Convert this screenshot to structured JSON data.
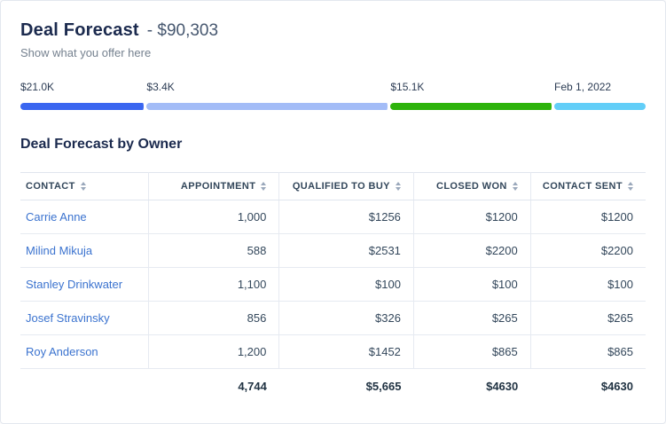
{
  "header": {
    "title": "Deal Forecast",
    "amount": "- $90,303",
    "subtitle": "Show what you offer here"
  },
  "progress": {
    "segments": [
      {
        "label": "$21.0K",
        "color": "#3a66f0",
        "width_pct": 20.2
      },
      {
        "label": "$3.4K",
        "color": "#a3bcf7",
        "width_pct": 39.0
      },
      {
        "label": "$15.1K",
        "color": "#2db30b",
        "width_pct": 26.2
      },
      {
        "label": "Feb 1, 2022",
        "color": "#62cef8",
        "width_pct": 14.6
      }
    ]
  },
  "table": {
    "title": "Deal Forecast by Owner",
    "sort_icon": "sort-arrows",
    "columns": [
      "CONTACT",
      "APPOINTMENT",
      "QUALIFIED TO BUY",
      "CLOSED WON",
      "CONTACT SENT"
    ],
    "col_widths_pct": [
      20.5,
      20.9,
      21.5,
      18.7,
      18.4
    ],
    "rows": [
      [
        "Carrie Anne",
        "1,000",
        "$1256",
        "$1200",
        "$1200"
      ],
      [
        "Milind Mikuja",
        "588",
        "$2531",
        "$2200",
        "$2200"
      ],
      [
        "Stanley Drinkwater",
        "1,100",
        "$100",
        "$100",
        "$100"
      ],
      [
        "Josef Stravinsky",
        "856",
        "$326",
        "$265",
        "$265"
      ],
      [
        "Roy Anderson",
        "1,200",
        "$1452",
        "$865",
        "$865"
      ]
    ],
    "totals": [
      "",
      "4,744",
      "$5,665",
      "$4630",
      "$4630"
    ]
  }
}
